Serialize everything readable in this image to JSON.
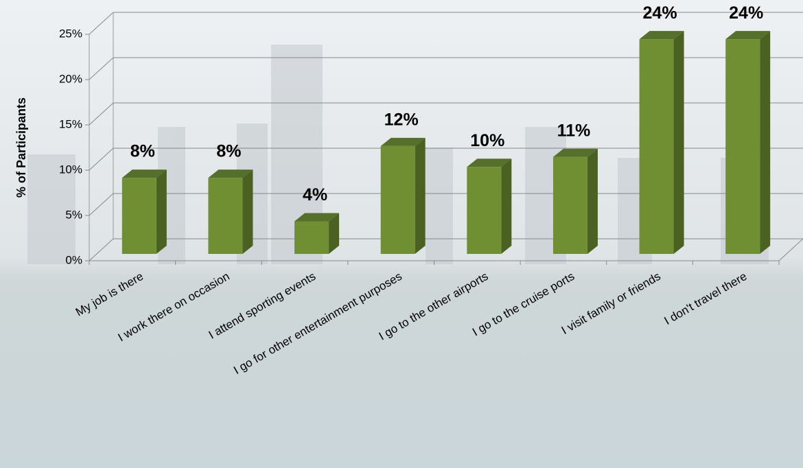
{
  "chart_data": {
    "type": "bar3d",
    "y_label": "% of Participants",
    "categories": [
      "My job is there",
      "I work there on occasion",
      "I attend sporting events",
      "I go for other entertainment purposes",
      "I go to the other airports",
      "I go to the cruise ports",
      "I visit family or friends",
      "I don't travel there"
    ],
    "values": [
      8.4,
      8.4,
      3.6,
      11.9,
      9.6,
      10.7,
      23.7,
      23.7
    ],
    "value_labels": [
      "8%",
      "8%",
      "4%",
      "12%",
      "10%",
      "11%",
      "24%",
      "24%"
    ],
    "color": "#6f8f32",
    "ylim": [
      0,
      25
    ],
    "yticks": [
      {
        "value": 0,
        "label": "0%"
      },
      {
        "value": 5,
        "label": "5%"
      },
      {
        "value": 10,
        "label": "10%"
      },
      {
        "value": 15,
        "label": "15%"
      },
      {
        "value": 20,
        "label": "20%"
      },
      {
        "value": 25,
        "label": "25%"
      }
    ],
    "grid": true
  }
}
